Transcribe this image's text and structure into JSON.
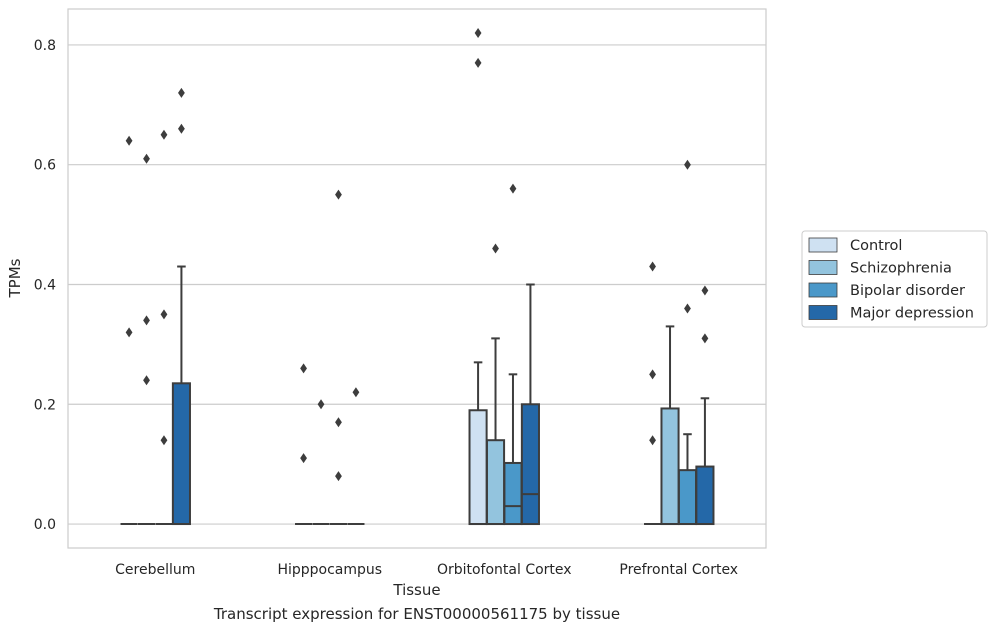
{
  "chart_data": {
    "type": "boxplot",
    "xlabel": "Tissue",
    "ylabel": "TPMs",
    "caption": "Transcript expression for ENST00000561175 by tissue",
    "ylim": [
      -0.04,
      0.86
    ],
    "yticks": [
      0.0,
      0.2,
      0.4,
      0.6,
      0.8
    ],
    "ytick_labels": [
      "0.0",
      "0.2",
      "0.4",
      "0.6",
      "0.8"
    ],
    "grid": "horizontal",
    "legend_position": "right",
    "categories": [
      "Cerebellum",
      "Hipppocampus",
      "Orbitofontal Cortex",
      "Prefrontal Cortex"
    ],
    "series": [
      {
        "name": "Control",
        "color": "#cfe1f2",
        "boxes": [
          {
            "q1": 0,
            "median": 0,
            "q3": 0,
            "whislo": 0,
            "whishi": 0,
            "fliers": [
              0.64,
              0.32
            ]
          },
          {
            "q1": 0,
            "median": 0,
            "q3": 0,
            "whislo": 0,
            "whishi": 0,
            "fliers": [
              0.26,
              0.11
            ]
          },
          {
            "q1": 0,
            "median": 0,
            "q3": 0.19,
            "whislo": 0,
            "whishi": 0.27,
            "fliers": [
              0.82,
              0.77
            ]
          },
          {
            "q1": 0,
            "median": 0,
            "q3": 0,
            "whislo": 0,
            "whishi": 0,
            "fliers": [
              0.43,
              0.25,
              0.14
            ]
          }
        ]
      },
      {
        "name": "Schizophrenia",
        "color": "#93c4de",
        "boxes": [
          {
            "q1": 0,
            "median": 0,
            "q3": 0,
            "whislo": 0,
            "whishi": 0,
            "fliers": [
              0.61,
              0.34,
              0.24
            ]
          },
          {
            "q1": 0,
            "median": 0,
            "q3": 0,
            "whislo": 0,
            "whishi": 0,
            "fliers": [
              0.2
            ]
          },
          {
            "q1": 0,
            "median": 0,
            "q3": 0.14,
            "whislo": 0,
            "whishi": 0.31,
            "fliers": [
              0.46
            ]
          },
          {
            "q1": 0,
            "median": 0,
            "q3": 0.193,
            "whislo": 0,
            "whishi": 0.33,
            "fliers": []
          }
        ]
      },
      {
        "name": "Bipolar disorder",
        "color": "#4a98c9",
        "boxes": [
          {
            "q1": 0,
            "median": 0,
            "q3": 0,
            "whislo": 0,
            "whishi": 0,
            "fliers": [
              0.65,
              0.35,
              0.14
            ]
          },
          {
            "q1": 0,
            "median": 0,
            "q3": 0,
            "whislo": 0,
            "whishi": 0,
            "fliers": [
              0.55,
              0.17,
              0.08
            ]
          },
          {
            "q1": 0,
            "median": 0.03,
            "q3": 0.102,
            "whislo": 0,
            "whishi": 0.25,
            "fliers": [
              0.56
            ]
          },
          {
            "q1": 0,
            "median": 0,
            "q3": 0.09,
            "whislo": 0,
            "whishi": 0.15,
            "fliers": [
              0.6,
              0.36
            ]
          }
        ]
      },
      {
        "name": "Major depression",
        "color": "#2468a8",
        "boxes": [
          {
            "q1": 0,
            "median": 0,
            "q3": 0.235,
            "whislo": 0,
            "whishi": 0.43,
            "fliers": [
              0.72,
              0.66
            ]
          },
          {
            "q1": 0,
            "median": 0,
            "q3": 0,
            "whislo": 0,
            "whishi": 0,
            "fliers": [
              0.22
            ]
          },
          {
            "q1": 0,
            "median": 0.05,
            "q3": 0.2,
            "whislo": 0,
            "whishi": 0.4,
            "fliers": []
          },
          {
            "q1": 0,
            "median": 0,
            "q3": 0.096,
            "whislo": 0,
            "whishi": 0.21,
            "fliers": [
              0.39,
              0.31
            ]
          }
        ]
      }
    ]
  }
}
